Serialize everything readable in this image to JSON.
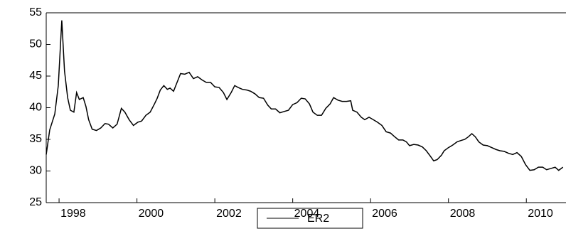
{
  "chart_data": {
    "type": "line",
    "x": [
      1997.67,
      1997.76,
      1997.89,
      1997.98,
      1998.07,
      1998.14,
      1998.22,
      1998.29,
      1998.38,
      1998.45,
      1998.52,
      1998.62,
      1998.69,
      1998.76,
      1998.85,
      1998.96,
      1999.07,
      1999.18,
      1999.27,
      1999.38,
      1999.49,
      1999.6,
      1999.69,
      1999.8,
      1999.91,
      2000.02,
      2000.12,
      2000.23,
      2000.34,
      2000.45,
      2000.52,
      2000.6,
      2000.69,
      2000.78,
      2000.85,
      2000.94,
      2001.03,
      2001.12,
      2001.23,
      2001.34,
      2001.45,
      2001.56,
      2001.67,
      2001.78,
      2001.89,
      2002.0,
      2002.11,
      2002.22,
      2002.31,
      2002.42,
      2002.51,
      2002.6,
      2002.71,
      2002.82,
      2002.92,
      2003.03,
      2003.14,
      2003.25,
      2003.36,
      2003.45,
      2003.56,
      2003.67,
      2003.78,
      2003.89,
      2004.0,
      2004.11,
      2004.22,
      2004.32,
      2004.43,
      2004.52,
      2004.63,
      2004.74,
      2004.85,
      2004.96,
      2005.05,
      2005.16,
      2005.27,
      2005.38,
      2005.49,
      2005.54,
      2005.65,
      2005.76,
      2005.85,
      2005.96,
      2006.07,
      2006.18,
      2006.29,
      2006.4,
      2006.51,
      2006.62,
      2006.72,
      2006.83,
      2006.92,
      2007.0,
      2007.11,
      2007.22,
      2007.33,
      2007.43,
      2007.54,
      2007.62,
      2007.71,
      2007.82,
      2007.89,
      2008.0,
      2008.11,
      2008.22,
      2008.31,
      2008.42,
      2008.51,
      2008.6,
      2008.69,
      2008.78,
      2008.89,
      2009.0,
      2009.11,
      2009.22,
      2009.32,
      2009.43,
      2009.54,
      2009.65,
      2009.76,
      2009.87,
      2009.98,
      2010.09,
      2010.2,
      2010.31,
      2010.42,
      2010.52,
      2010.63,
      2010.74,
      2010.83,
      2010.94
    ],
    "series": [
      {
        "name": "ER2",
        "color": "#000000",
        "values": [
          32.6,
          36.5,
          39.0,
          43.5,
          53.8,
          45.8,
          41.6,
          39.6,
          39.3,
          42.4,
          41.3,
          41.6,
          40.2,
          38.1,
          36.6,
          36.4,
          36.8,
          37.5,
          37.4,
          36.8,
          37.4,
          39.9,
          39.3,
          38.1,
          37.2,
          37.7,
          37.9,
          38.8,
          39.3,
          40.6,
          41.5,
          42.8,
          43.5,
          42.9,
          43.1,
          42.6,
          44.0,
          45.4,
          45.3,
          45.6,
          44.6,
          44.9,
          44.4,
          44.0,
          44.0,
          43.3,
          43.2,
          42.4,
          41.3,
          42.4,
          43.5,
          43.2,
          42.9,
          42.8,
          42.6,
          42.2,
          41.6,
          41.5,
          40.4,
          39.8,
          39.8,
          39.2,
          39.4,
          39.6,
          40.5,
          40.8,
          41.5,
          41.4,
          40.6,
          39.3,
          38.8,
          38.8,
          39.9,
          40.6,
          41.6,
          41.2,
          41.0,
          41.0,
          41.1,
          39.6,
          39.3,
          38.5,
          38.1,
          38.5,
          38.1,
          37.7,
          37.2,
          36.2,
          36.0,
          35.4,
          34.9,
          34.9,
          34.6,
          34.0,
          34.2,
          34.1,
          33.8,
          33.2,
          32.3,
          31.6,
          31.8,
          32.5,
          33.2,
          33.7,
          34.1,
          34.6,
          34.8,
          35.0,
          35.4,
          35.9,
          35.4,
          34.6,
          34.1,
          34.0,
          33.7,
          33.4,
          33.2,
          33.1,
          32.8,
          32.6,
          32.9,
          32.3,
          31.0,
          30.1,
          30.2,
          30.6,
          30.6,
          30.2,
          30.4,
          30.6,
          30.1,
          30.6
        ]
      }
    ],
    "xlim": [
      1997.67,
      2011.0
    ],
    "xticks": [
      1998,
      2000,
      2002,
      2004,
      2006,
      2008,
      2010
    ],
    "ylim": [
      25,
      55
    ],
    "yticks": [
      25,
      30,
      35,
      40,
      45,
      50,
      55
    ],
    "grid": false,
    "legend": "bottom"
  }
}
